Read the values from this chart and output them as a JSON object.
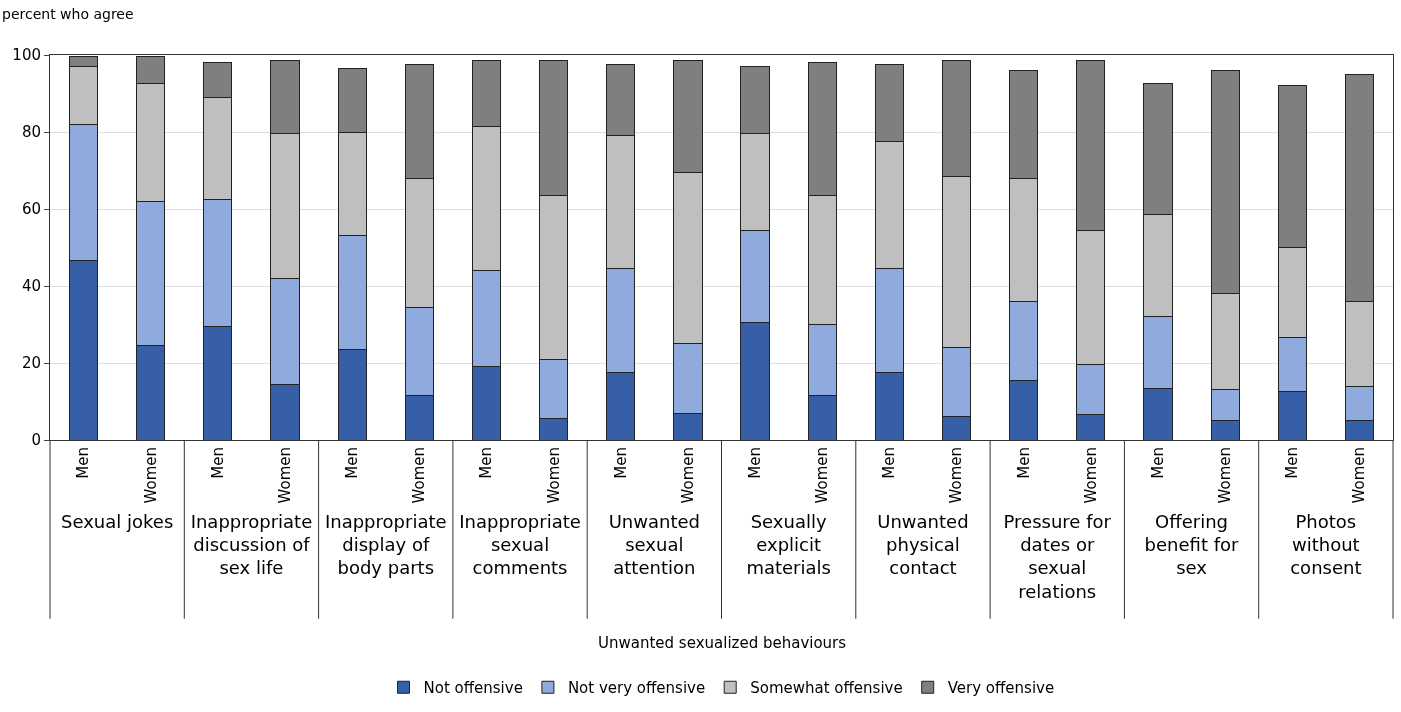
{
  "chart_data": [
    {
      "type": "bar",
      "stacked": true,
      "ylabel": "percent who agree",
      "xlabel": "Sexual jokes",
      "annotations": [
        "Unwanted sexualized behaviours"
      ],
      "categories": [
        "Men",
        "Women"
      ],
      "series": [
        {
          "name": "Not offensive",
          "color": "#365fa8",
          "values": [
            46.5,
            24.5
          ]
        },
        {
          "name": "Not very offensive",
          "color": "#8faadc",
          "values": [
            35.5,
            37.5
          ]
        },
        {
          "name": "Somewhat offensive",
          "color": "#bfbfbf",
          "values": [
            15,
            30.5
          ]
        },
        {
          "name": "Very offensive",
          "color": "#7f7f7f",
          "values": [
            2.5,
            7
          ]
        }
      ],
      "ylim": [
        0,
        100
      ],
      "yticks": [
        0,
        20,
        40,
        60,
        80,
        100
      ],
      "grid": "y",
      "legend": "bottom"
    },
    {
      "type": "bar",
      "stacked": true,
      "xlabel": "Inappropriate discussion of sex life",
      "categories": [
        "Men",
        "Women"
      ],
      "series": [
        {
          "color": "#365fa8",
          "values": [
            29.5,
            14.5
          ]
        },
        {
          "color": "#8faadc",
          "values": [
            33,
            27.5
          ]
        },
        {
          "color": "#bfbfbf",
          "values": [
            26.5,
            37.5
          ]
        },
        {
          "color": "#7f7f7f",
          "values": [
            9,
            19
          ]
        }
      ],
      "ylim": [
        0,
        100
      ],
      "yticks": [
        0,
        20,
        40,
        60,
        80,
        100
      ],
      "grid": "y",
      "tick_labels": "x"
    },
    {
      "type": "bar",
      "stacked": true,
      "xlabel": "Inappropriate display of body parts",
      "categories": [
        "Men",
        "Women"
      ],
      "series": [
        {
          "color": "#365fa8",
          "values": [
            23.5,
            11.5
          ]
        },
        {
          "color": "#8faadc",
          "values": [
            29.5,
            23
          ]
        },
        {
          "color": "#bfbfbf",
          "values": [
            27,
            33.5
          ]
        },
        {
          "color": "#7f7f7f",
          "values": [
            16.5,
            29.5
          ]
        }
      ],
      "ylim": [
        0,
        100
      ],
      "yticks": [
        0,
        20,
        40,
        60,
        80,
        100
      ],
      "grid": "y",
      "tick_labels": "x"
    },
    {
      "type": "bar",
      "stacked": true,
      "xlabel": "Inappropriate sexual comments",
      "categories": [
        "Men",
        "Women"
      ],
      "series": [
        {
          "color": "#365fa8",
          "values": [
            19,
            5.5
          ]
        },
        {
          "color": "#8faadc",
          "values": [
            25,
            15.5
          ]
        },
        {
          "color": "#bfbfbf",
          "values": [
            37.5,
            42.5
          ]
        },
        {
          "color": "#7f7f7f",
          "values": [
            17,
            35
          ]
        }
      ],
      "ylim": [
        0,
        100
      ],
      "yticks": [
        0,
        20,
        40,
        60,
        80,
        100
      ],
      "grid": "y",
      "tick_labels": "x"
    },
    {
      "type": "bar",
      "stacked": true,
      "xlabel": "Unwanted sexual attention",
      "categories": [
        "Men",
        "Women"
      ],
      "series": [
        {
          "color": "#365fa8",
          "values": [
            17.5,
            7
          ]
        },
        {
          "color": "#8faadc",
          "values": [
            27,
            18
          ]
        },
        {
          "color": "#bfbfbf",
          "values": [
            34.5,
            44.5
          ]
        },
        {
          "color": "#7f7f7f",
          "values": [
            18.5,
            29
          ]
        }
      ],
      "ylim": [
        0,
        100
      ],
      "yticks": [
        0,
        20,
        40,
        60,
        80,
        100
      ],
      "grid": "y",
      "tick_labels": "x"
    },
    {
      "type": "bar",
      "stacked": true,
      "xlabel": "Sexually explicit materials",
      "categories": [
        "Men",
        "Women"
      ],
      "series": [
        {
          "color": "#365fa8",
          "values": [
            30.5,
            11.5
          ]
        },
        {
          "color": "#8faadc",
          "values": [
            24,
            18.5
          ]
        },
        {
          "color": "#bfbfbf",
          "values": [
            25,
            33.5
          ]
        },
        {
          "color": "#7f7f7f",
          "values": [
            17.5,
            34.5
          ]
        }
      ],
      "ylim": [
        0,
        100
      ],
      "yticks": [
        0,
        20,
        40,
        60,
        80,
        100
      ],
      "grid": "y",
      "tick_labels": "x"
    },
    {
      "type": "bar",
      "stacked": true,
      "xlabel": "Unwanted physical contact",
      "categories": [
        "Men",
        "Women"
      ],
      "series": [
        {
          "color": "#365fa8",
          "values": [
            17.5,
            6
          ]
        },
        {
          "color": "#8faadc",
          "values": [
            27,
            18
          ]
        },
        {
          "color": "#bfbfbf",
          "values": [
            33,
            44.5
          ]
        },
        {
          "color": "#7f7f7f",
          "values": [
            20,
            30
          ]
        }
      ],
      "ylim": [
        0,
        100
      ],
      "yticks": [
        0,
        20,
        40,
        60,
        80,
        100
      ],
      "grid": "y",
      "tick_labels": "x"
    },
    {
      "type": "bar",
      "stacked": true,
      "xlabel": "Pressure for dates or sexual relations",
      "categories": [
        "Men",
        "Women"
      ],
      "series": [
        {
          "color": "#365fa8",
          "values": [
            15.5,
            6.5
          ]
        },
        {
          "color": "#8faadc",
          "values": [
            20.5,
            13
          ]
        },
        {
          "color": "#bfbfbf",
          "values": [
            32,
            35
          ]
        },
        {
          "color": "#7f7f7f",
          "values": [
            28,
            44
          ]
        }
      ],
      "ylim": [
        0,
        100
      ],
      "yticks": [
        0,
        20,
        40,
        60,
        80,
        100
      ],
      "grid": "y",
      "tick_labels": "x"
    },
    {
      "type": "bar",
      "stacked": true,
      "xlabel": "Offering benefit for sex",
      "categories": [
        "Men",
        "Women"
      ],
      "series": [
        {
          "color": "#365fa8",
          "values": [
            13.5,
            5
          ]
        },
        {
          "color": "#8faadc",
          "values": [
            18.5,
            8
          ]
        },
        {
          "color": "#bfbfbf",
          "values": [
            26.5,
            25
          ]
        },
        {
          "color": "#7f7f7f",
          "values": [
            34,
            58
          ]
        }
      ],
      "ylim": [
        0,
        100
      ],
      "yticks": [
        0,
        20,
        40,
        60,
        80,
        100
      ],
      "grid": "y",
      "tick_labels": "x"
    },
    {
      "type": "bar",
      "stacked": true,
      "xlabel": "Photos without consent",
      "categories": [
        "Men",
        "Women"
      ],
      "series": [
        {
          "color": "#365fa8",
          "values": [
            12.5,
            5
          ]
        },
        {
          "color": "#8faadc",
          "values": [
            14,
            9
          ]
        },
        {
          "color": "#bfbfbf",
          "values": [
            23.5,
            22
          ]
        },
        {
          "color": "#7f7f7f",
          "values": [
            42,
            59
          ]
        }
      ],
      "ylim": [
        0,
        100
      ],
      "yticks": [
        0,
        20,
        40,
        60,
        80,
        100
      ],
      "grid": "y",
      "tick_labels": "x"
    }
  ]
}
